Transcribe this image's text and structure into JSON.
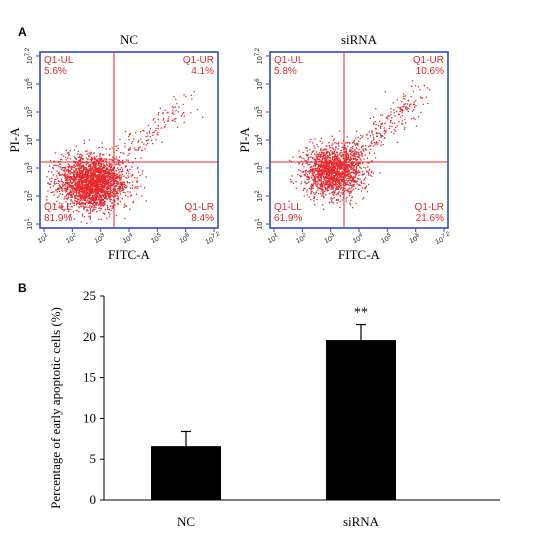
{
  "panel_labels": {
    "a": "A",
    "b": "B"
  },
  "colors": {
    "dot": "#e8262c",
    "frame": "#2b4eb8",
    "quadrant_text": "#e8262c",
    "bar": "#000000",
    "axis": "#000000"
  },
  "chart_data": [
    {
      "type": "scatter",
      "title": "NC",
      "xlabel": "FITC-A",
      "ylabel": "PI-A",
      "x_scale": "log",
      "y_scale": "log",
      "x_ticks": [
        "10^1",
        "10^2",
        "10^3",
        "10^4",
        "10^5",
        "10^6",
        "10^7.2"
      ],
      "y_ticks": [
        "10^1",
        "10^2",
        "10^3",
        "10^4",
        "10^5",
        "10^6",
        "10^7.2"
      ],
      "quadrants": [
        {
          "name": "Q1-UL",
          "value": "5.6%"
        },
        {
          "name": "Q1-UR",
          "value": "4.1%"
        },
        {
          "name": "Q1-LL",
          "value": "81.9%"
        },
        {
          "name": "Q1-LR",
          "value": "8.4%"
        }
      ]
    },
    {
      "type": "scatter",
      "title": "siRNA",
      "xlabel": "FITC-A",
      "ylabel": "PI-A",
      "x_scale": "log",
      "y_scale": "log",
      "x_ticks": [
        "10^1",
        "10^2",
        "10^3",
        "10^4",
        "10^5",
        "10^6",
        "10^7.2"
      ],
      "y_ticks": [
        "10^1",
        "10^2",
        "10^3",
        "10^4",
        "10^5",
        "10^6",
        "10^7.2"
      ],
      "quadrants": [
        {
          "name": "Q1-UL",
          "value": "5.8%"
        },
        {
          "name": "Q1-UR",
          "value": "10.6%"
        },
        {
          "name": "Q1-LL",
          "value": "61.9%"
        },
        {
          "name": "Q1-LR",
          "value": "21.6%"
        }
      ]
    },
    {
      "type": "bar",
      "categories": [
        "NC",
        "siRNA"
      ],
      "values": [
        6.6,
        19.6
      ],
      "errors": [
        1.8,
        1.9
      ],
      "ylabel": "Percentage of early apoptotic cells (%)",
      "ylim": [
        0,
        25
      ],
      "yticks": [
        0,
        5,
        10,
        15,
        20,
        25
      ],
      "annotations": [
        {
          "category": "siRNA",
          "text": "**"
        }
      ]
    }
  ]
}
